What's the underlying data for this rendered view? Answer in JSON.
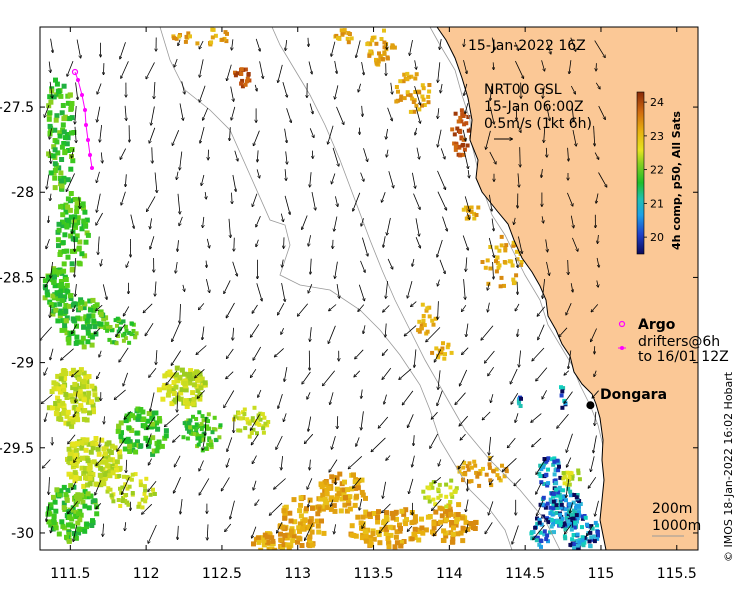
{
  "map": {
    "timestamp": "15-Jan-2022 16Z",
    "x_ticks": [
      "111.5",
      "112",
      "112.5",
      "113",
      "113.5",
      "114",
      "114.5",
      "115",
      "115.5"
    ],
    "y_ticks": [
      "-27.5",
      "-28",
      "-28.5",
      "-29",
      "-29.5",
      "-30"
    ],
    "x_tick_values": [
      111.5,
      112,
      112.5,
      113,
      113.5,
      114,
      114.5,
      115,
      115.5
    ],
    "y_tick_values": [
      -27.5,
      -28,
      -28.5,
      -29,
      -29.5,
      -30
    ],
    "lon_range": [
      111.3,
      115.64
    ],
    "lat_range": [
      -30.1,
      -27.03
    ],
    "current_legend": {
      "line1": "NRT00 GSL",
      "line2": "15-Jan 06:00Z",
      "line3": "0.5m/s (1kt 6h)"
    },
    "colorbar": {
      "title": "4h comp, p50, All Sats",
      "ticks": [
        "24",
        "23",
        "22",
        "21",
        "20"
      ],
      "tick_values": [
        24,
        23,
        22,
        21,
        20
      ],
      "range": [
        19.5,
        24.3
      ]
    },
    "argo_legend": {
      "title": "Argo",
      "line1": "drifters@6h",
      "line2": "to 16/01 12Z"
    },
    "town": {
      "name": "Dongara",
      "lon": 114.93,
      "lat": -29.25
    },
    "isobaths": {
      "line1": "200m",
      "line2": "1000m"
    },
    "credit": "© IMOS 18-Jan-2022 16:02 Hobart",
    "colors": {
      "land": "#fbc896",
      "coast": "#000000",
      "isobath": "#9a9a9a",
      "argo": "#ff00ff",
      "town": "#000000"
    }
  }
}
